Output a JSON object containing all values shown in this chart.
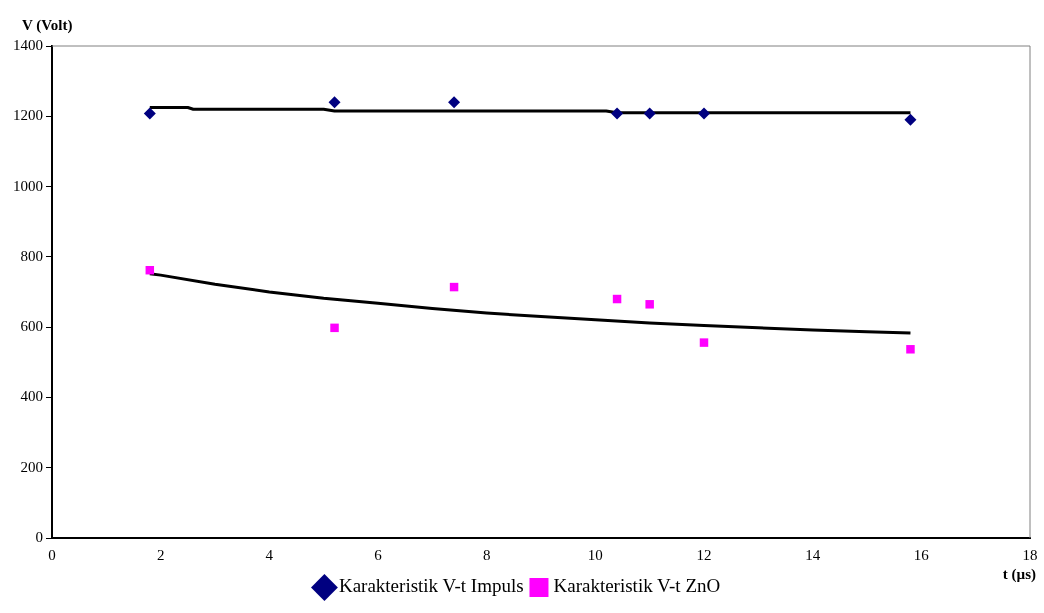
{
  "chart_data": {
    "type": "scatter",
    "xlabel": "t (µs)",
    "ylabel": "V (Volt)",
    "xlim": [
      0,
      18
    ],
    "xticks": [
      0,
      2,
      4,
      6,
      8,
      10,
      12,
      14,
      16,
      18
    ],
    "ylim": [
      0,
      1400
    ],
    "yticks": [
      0,
      200,
      400,
      600,
      800,
      1000,
      1200,
      1400
    ],
    "grid": false,
    "legend": "bottom",
    "series": [
      {
        "name": "Karakteristik V-t Impuls",
        "color": "#000080",
        "marker": "diamond",
        "x": [
          1.8,
          5.2,
          7.4,
          10.4,
          11.0,
          12.0,
          15.8
        ],
        "values": [
          1208,
          1240,
          1240,
          1208,
          1208,
          1208,
          1190
        ]
      },
      {
        "name": "Karakteristik V-t ZnO",
        "color": "#ff00ff",
        "marker": "square",
        "x": [
          1.8,
          5.2,
          7.4,
          10.4,
          11.0,
          12.0,
          15.8
        ],
        "values": [
          762,
          598,
          714,
          680,
          665,
          556,
          537
        ]
      },
      {
        "type": "line",
        "color": "#000000",
        "marker": "none",
        "x": [
          1.8,
          2.5,
          2.6,
          5.0,
          5.2,
          10.2,
          10.4,
          15.8
        ],
        "values": [
          1225,
          1225,
          1220,
          1220,
          1215,
          1215,
          1210,
          1210
        ]
      },
      {
        "type": "line",
        "color": "#000000",
        "marker": "none",
        "x": [
          1.8,
          2,
          3,
          4,
          5,
          6,
          7,
          8,
          9,
          10,
          11,
          12,
          13,
          14,
          15,
          15.8
        ],
        "values": [
          752,
          748,
          722,
          700,
          682,
          668,
          653,
          640,
          630,
          621,
          612,
          605,
          598,
          592,
          587,
          583
        ]
      }
    ]
  }
}
